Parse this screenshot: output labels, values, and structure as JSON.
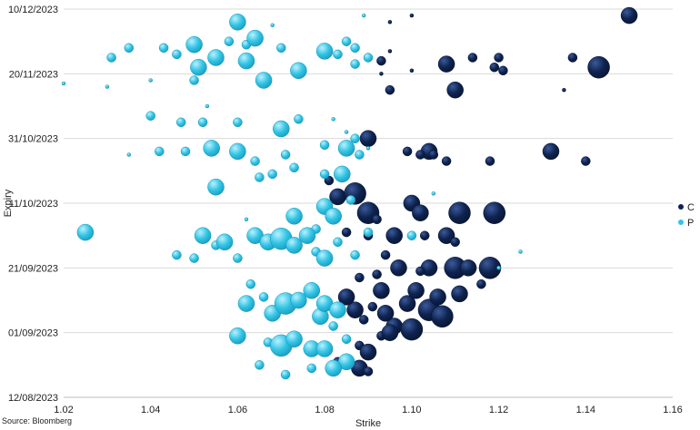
{
  "chart_data": {
    "type": "scatter",
    "subtype": "bubble",
    "xlabel": "Strike",
    "ylabel": "Expiry",
    "xlim": [
      1.02,
      1.16
    ],
    "ylim": [
      "2023-08-12",
      "2023-12-10"
    ],
    "x_ticks": [
      "1.02",
      "1.04",
      "1.06",
      "1.08",
      "1.10",
      "1.12",
      "1.14",
      "1.16"
    ],
    "y_ticks": [
      {
        "date": "2023-08-12",
        "label": "12/08/2023"
      },
      {
        "date": "2023-09-01",
        "label": "01/09/2023"
      },
      {
        "date": "2023-09-21",
        "label": "21/09/2023"
      },
      {
        "date": "2023-10-11",
        "label": "11/10/2023"
      },
      {
        "date": "2023-10-31",
        "label": "31/10/2023"
      },
      {
        "date": "2023-11-20",
        "label": "20/11/2023"
      },
      {
        "date": "2023-12-10",
        "label": "10/12/2023"
      }
    ],
    "grid": "horizontal",
    "legend_position": "right",
    "source": "Source: Bloomberg",
    "series": [
      {
        "name": "C",
        "color": "#0f2350",
        "points": [
          [
            1.15,
            "2023-12-08",
            3
          ],
          [
            1.143,
            "2023-11-22",
            4
          ],
          [
            1.137,
            "2023-11-25",
            2
          ],
          [
            1.135,
            "2023-11-15",
            1
          ],
          [
            1.132,
            "2023-10-27",
            3
          ],
          [
            1.14,
            "2023-10-24",
            2
          ],
          [
            1.12,
            "2023-11-25",
            2
          ],
          [
            1.121,
            "2023-11-21",
            2
          ],
          [
            1.119,
            "2023-11-22",
            2
          ],
          [
            1.118,
            "2023-10-24",
            2
          ],
          [
            1.119,
            "2023-10-08",
            4
          ],
          [
            1.111,
            "2023-10-08",
            4
          ],
          [
            1.114,
            "2023-11-25",
            2
          ],
          [
            1.108,
            "2023-11-23",
            3
          ],
          [
            1.11,
            "2023-11-15",
            3
          ],
          [
            1.108,
            "2023-10-24",
            2
          ],
          [
            1.104,
            "2023-10-27",
            3
          ],
          [
            1.102,
            "2023-10-26",
            2
          ],
          [
            1.099,
            "2023-10-27",
            2
          ],
          [
            1.1,
            "2023-10-11",
            3
          ],
          [
            1.102,
            "2023-10-08",
            3
          ],
          [
            1.09,
            "2023-10-08",
            4
          ],
          [
            1.092,
            "2023-10-06",
            2
          ],
          [
            1.09,
            "2023-10-31",
            3
          ],
          [
            1.083,
            "2023-10-13",
            3
          ],
          [
            1.081,
            "2023-10-18",
            2
          ],
          [
            1.087,
            "2023-10-14",
            4
          ],
          [
            1.093,
            "2023-11-24",
            2
          ],
          [
            1.095,
            "2023-11-15",
            2
          ],
          [
            1.095,
            "2023-11-27",
            1
          ],
          [
            1.1,
            "2023-11-21",
            1
          ],
          [
            1.1,
            "2023-12-08",
            1
          ],
          [
            1.095,
            "2023-12-06",
            1
          ],
          [
            1.096,
            "2023-10-01",
            3
          ],
          [
            1.09,
            "2023-10-01",
            2
          ],
          [
            1.085,
            "2023-10-02",
            2
          ],
          [
            1.103,
            "2023-10-01",
            2
          ],
          [
            1.108,
            "2023-10-01",
            3
          ],
          [
            1.11,
            "2023-09-29",
            2
          ],
          [
            1.094,
            "2023-09-25",
            2
          ],
          [
            1.104,
            "2023-09-21",
            3
          ],
          [
            1.11,
            "2023-09-21",
            4
          ],
          [
            1.113,
            "2023-09-21",
            3
          ],
          [
            1.118,
            "2023-09-21",
            4
          ],
          [
            1.102,
            "2023-09-20",
            2
          ],
          [
            1.097,
            "2023-09-21",
            3
          ],
          [
            1.092,
            "2023-09-19",
            2
          ],
          [
            1.088,
            "2023-09-18",
            2
          ],
          [
            1.093,
            "2023-09-14",
            3
          ],
          [
            1.099,
            "2023-09-10",
            3
          ],
          [
            1.104,
            "2023-09-08",
            4
          ],
          [
            1.106,
            "2023-09-12",
            3
          ],
          [
            1.107,
            "2023-09-06",
            4
          ],
          [
            1.111,
            "2023-09-13",
            3
          ],
          [
            1.116,
            "2023-09-16",
            2
          ],
          [
            1.101,
            "2023-09-14",
            3
          ],
          [
            1.096,
            "2023-09-03",
            3
          ],
          [
            1.1,
            "2023-09-02",
            4
          ],
          [
            1.094,
            "2023-09-07",
            3
          ],
          [
            1.091,
            "2023-09-09",
            2
          ],
          [
            1.089,
            "2023-09-05",
            2
          ],
          [
            1.087,
            "2023-09-08",
            3
          ],
          [
            1.085,
            "2023-09-12",
            3
          ],
          [
            1.088,
            "2023-08-28",
            2
          ],
          [
            1.09,
            "2023-08-26",
            3
          ],
          [
            1.093,
            "2023-08-31",
            2
          ],
          [
            1.095,
            "2023-09-01",
            3
          ],
          [
            1.083,
            "2023-08-23",
            2
          ],
          [
            1.088,
            "2023-08-21",
            3
          ],
          [
            1.09,
            "2023-08-20",
            2
          ],
          [
            1.105,
            "2023-10-26",
            2
          ],
          [
            1.093,
            "2023-11-20",
            1
          ]
        ]
      },
      {
        "name": "P",
        "color": "#33c4e4",
        "points": [
          [
            1.025,
            "2023-10-02",
            3
          ],
          [
            1.02,
            "2023-11-17",
            1
          ],
          [
            1.03,
            "2023-11-16",
            1
          ],
          [
            1.031,
            "2023-11-25",
            2
          ],
          [
            1.035,
            "2023-11-28",
            2
          ],
          [
            1.04,
            "2023-11-18",
            1
          ],
          [
            1.043,
            "2023-11-28",
            2
          ],
          [
            1.046,
            "2023-11-26",
            2
          ],
          [
            1.05,
            "2023-11-29",
            3
          ],
          [
            1.05,
            "2023-11-18",
            2
          ],
          [
            1.051,
            "2023-11-22",
            3
          ],
          [
            1.055,
            "2023-11-25",
            3
          ],
          [
            1.058,
            "2023-11-30",
            2
          ],
          [
            1.06,
            "2023-12-06",
            3
          ],
          [
            1.062,
            "2023-11-29",
            2
          ],
          [
            1.064,
            "2023-12-01",
            3
          ],
          [
            1.062,
            "2023-11-24",
            3
          ],
          [
            1.066,
            "2023-11-18",
            3
          ],
          [
            1.07,
            "2023-11-28",
            2
          ],
          [
            1.074,
            "2023-11-21",
            3
          ],
          [
            1.08,
            "2023-11-27",
            3
          ],
          [
            1.083,
            "2023-11-26",
            2
          ],
          [
            1.087,
            "2023-11-28",
            2
          ],
          [
            1.09,
            "2023-11-25",
            2
          ],
          [
            1.085,
            "2023-11-30",
            2
          ],
          [
            1.087,
            "2023-11-23",
            2
          ],
          [
            1.089,
            "2023-12-08",
            1
          ],
          [
            1.04,
            "2023-11-07",
            2
          ],
          [
            1.042,
            "2023-10-27",
            2
          ],
          [
            1.035,
            "2023-10-26",
            1
          ],
          [
            1.047,
            "2023-11-05",
            2
          ],
          [
            1.052,
            "2023-11-05",
            2
          ],
          [
            1.048,
            "2023-10-27",
            2
          ],
          [
            1.054,
            "2023-10-28",
            3
          ],
          [
            1.06,
            "2023-10-27",
            3
          ],
          [
            1.064,
            "2023-10-24",
            2
          ],
          [
            1.06,
            "2023-11-05",
            2
          ],
          [
            1.07,
            "2023-11-03",
            3
          ],
          [
            1.074,
            "2023-11-06",
            2
          ],
          [
            1.08,
            "2023-10-29",
            2
          ],
          [
            1.085,
            "2023-10-28",
            3
          ],
          [
            1.088,
            "2023-10-26",
            2
          ],
          [
            1.087,
            "2023-10-31",
            2
          ],
          [
            1.071,
            "2023-10-26",
            2
          ],
          [
            1.068,
            "2023-10-20",
            2
          ],
          [
            1.055,
            "2023-10-16",
            3
          ],
          [
            1.073,
            "2023-10-22",
            2
          ],
          [
            1.065,
            "2023-10-19",
            2
          ],
          [
            1.08,
            "2023-10-20",
            2
          ],
          [
            1.084,
            "2023-10-20",
            3
          ],
          [
            1.086,
            "2023-10-12",
            2
          ],
          [
            1.08,
            "2023-10-10",
            3
          ],
          [
            1.082,
            "2023-10-07",
            3
          ],
          [
            1.078,
            "2023-10-03",
            2
          ],
          [
            1.073,
            "2023-10-07",
            3
          ],
          [
            1.062,
            "2023-10-06",
            1
          ],
          [
            1.046,
            "2023-09-25",
            2
          ],
          [
            1.05,
            "2023-09-24",
            2
          ],
          [
            1.052,
            "2023-10-01",
            3
          ],
          [
            1.055,
            "2023-09-28",
            2
          ],
          [
            1.057,
            "2023-09-29",
            3
          ],
          [
            1.06,
            "2023-09-24",
            2
          ],
          [
            1.064,
            "2023-10-01",
            3
          ],
          [
            1.067,
            "2023-09-29",
            3
          ],
          [
            1.07,
            "2023-09-30",
            4
          ],
          [
            1.073,
            "2023-09-28",
            3
          ],
          [
            1.076,
            "2023-10-01",
            3
          ],
          [
            1.078,
            "2023-09-26",
            2
          ],
          [
            1.08,
            "2023-09-24",
            3
          ],
          [
            1.083,
            "2023-09-29",
            2
          ],
          [
            1.087,
            "2023-09-25",
            2
          ],
          [
            1.09,
            "2023-10-02",
            2
          ],
          [
            1.063,
            "2023-09-16",
            2
          ],
          [
            1.062,
            "2023-09-10",
            3
          ],
          [
            1.066,
            "2023-09-12",
            2
          ],
          [
            1.068,
            "2023-09-07",
            3
          ],
          [
            1.071,
            "2023-09-10",
            4
          ],
          [
            1.074,
            "2023-09-11",
            3
          ],
          [
            1.077,
            "2023-09-14",
            3
          ],
          [
            1.079,
            "2023-09-06",
            3
          ],
          [
            1.08,
            "2023-09-10",
            3
          ],
          [
            1.082,
            "2023-09-03",
            2
          ],
          [
            1.083,
            "2023-09-08",
            3
          ],
          [
            1.085,
            "2023-08-30",
            2
          ],
          [
            1.06,
            "2023-08-31",
            3
          ],
          [
            1.067,
            "2023-08-29",
            2
          ],
          [
            1.07,
            "2023-08-28",
            4
          ],
          [
            1.073,
            "2023-08-30",
            3
          ],
          [
            1.077,
            "2023-08-27",
            3
          ],
          [
            1.08,
            "2023-08-27",
            3
          ],
          [
            1.085,
            "2023-08-23",
            3
          ],
          [
            1.082,
            "2023-08-21",
            3
          ],
          [
            1.077,
            "2023-08-21",
            2
          ],
          [
            1.071,
            "2023-08-19",
            2
          ],
          [
            1.065,
            "2023-08-22",
            2
          ],
          [
            1.1,
            "2023-10-01",
            2
          ],
          [
            1.105,
            "2023-10-14",
            1
          ],
          [
            1.12,
            "2023-09-21",
            1
          ],
          [
            1.125,
            "2023-09-26",
            1
          ],
          [
            1.09,
            "2023-10-28",
            1
          ],
          [
            1.085,
            "2023-11-02",
            1
          ],
          [
            1.082,
            "2023-11-06",
            1
          ],
          [
            1.068,
            "2023-12-05",
            1
          ],
          [
            1.053,
            "2023-11-10",
            1
          ]
        ]
      }
    ]
  }
}
